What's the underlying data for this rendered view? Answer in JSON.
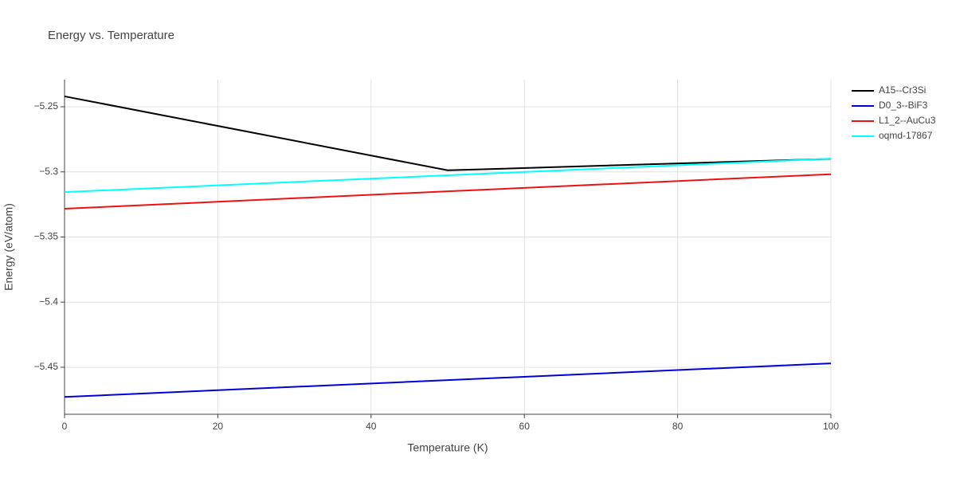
{
  "chart_data": {
    "type": "line",
    "title": "Energy vs. Temperature",
    "x_label": "Temperature (K)",
    "y_label": "Energy (eV/atom)",
    "x": [
      0,
      50,
      100
    ],
    "series": [
      {
        "name": "A15--Cr3Si",
        "color": "#000000",
        "values": [
          -5.242,
          -5.2988,
          -5.29
        ]
      },
      {
        "name": "D0_3--BiF3",
        "color": "#0000dd",
        "values": [
          -5.4728,
          -5.4599,
          -5.447
        ]
      },
      {
        "name": "L1_2--AuCu3",
        "color": "#ee1111",
        "values": [
          -5.3283,
          -5.3149,
          -5.3018
        ]
      },
      {
        "name": "oqmd-17867",
        "color": "#00ffff",
        "values": [
          -5.3155,
          -5.3026,
          -5.2898
        ]
      }
    ],
    "xlim": [
      0,
      100
    ],
    "xticks": [
      0,
      20,
      40,
      60,
      80,
      100
    ],
    "ylim": [
      -5.4861,
      -5.2292
    ],
    "yticks": [
      {
        "value": -5.45,
        "label": "−5.45"
      },
      {
        "value": -5.4,
        "label": "−5.4"
      },
      {
        "value": -5.35,
        "label": "−5.35"
      },
      {
        "value": -5.3,
        "label": "−5.3"
      },
      {
        "value": -5.25,
        "label": "−5.25"
      }
    ],
    "grid": true,
    "legend": "top-right"
  }
}
